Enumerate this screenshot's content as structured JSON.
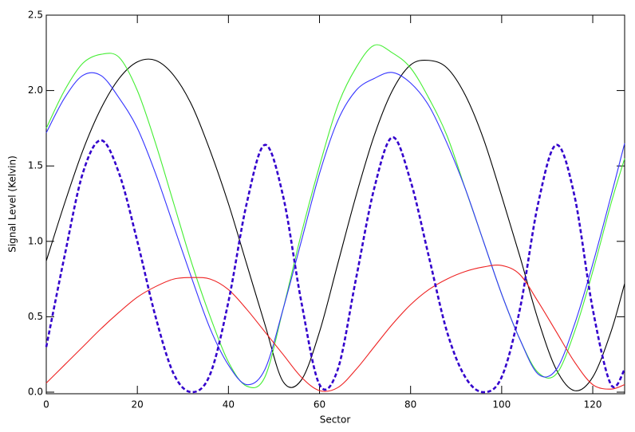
{
  "chart_data": {
    "type": "line",
    "xlabel": "Sector",
    "ylabel": "Signal Level (Kelvin)",
    "x": [
      0,
      4,
      8,
      12,
      16,
      20,
      24,
      28,
      32,
      36,
      40,
      44,
      48,
      52,
      56,
      60,
      64,
      68,
      72,
      76,
      80,
      84,
      88,
      92,
      96,
      100,
      104,
      108,
      112,
      116,
      120,
      124,
      127
    ],
    "series": [
      {
        "color": "#000000",
        "style": "solid",
        "values": [
          0.87,
          1.25,
          1.6,
          1.88,
          2.08,
          2.19,
          2.2,
          2.1,
          1.9,
          1.6,
          1.25,
          0.85,
          0.45,
          0.07,
          0.08,
          0.4,
          0.85,
          1.3,
          1.7,
          2.0,
          2.17,
          2.2,
          2.15,
          1.97,
          1.68,
          1.3,
          0.9,
          0.48,
          0.15,
          0.01,
          0.1,
          0.4,
          0.72
        ]
      },
      {
        "color": "#44ee33",
        "style": "solid",
        "values": [
          1.75,
          2.0,
          2.18,
          2.24,
          2.22,
          2.0,
          1.65,
          1.25,
          0.85,
          0.5,
          0.2,
          0.04,
          0.1,
          0.55,
          1.05,
          1.5,
          1.9,
          2.15,
          2.3,
          2.25,
          2.15,
          1.95,
          1.7,
          1.35,
          1.0,
          0.65,
          0.35,
          0.13,
          0.12,
          0.4,
          0.8,
          1.25,
          1.55
        ]
      },
      {
        "color": "#3333ff",
        "style": "solid",
        "values": [
          1.72,
          1.95,
          2.1,
          2.1,
          1.95,
          1.75,
          1.45,
          1.1,
          0.75,
          0.42,
          0.18,
          0.05,
          0.15,
          0.55,
          1.0,
          1.45,
          1.8,
          2.0,
          2.08,
          2.12,
          2.05,
          1.9,
          1.65,
          1.35,
          1.0,
          0.65,
          0.35,
          0.12,
          0.15,
          0.45,
          0.85,
          1.3,
          1.65
        ]
      },
      {
        "color": "#ee2222",
        "style": "solid",
        "values": [
          0.06,
          0.18,
          0.3,
          0.42,
          0.53,
          0.63,
          0.7,
          0.75,
          0.76,
          0.75,
          0.68,
          0.55,
          0.4,
          0.25,
          0.1,
          0.01,
          0.03,
          0.15,
          0.3,
          0.45,
          0.58,
          0.68,
          0.75,
          0.8,
          0.83,
          0.84,
          0.78,
          0.6,
          0.4,
          0.2,
          0.05,
          0.02,
          0.05
        ]
      },
      {
        "color": "#3300cc",
        "style": "dashed",
        "values": [
          0.3,
          0.9,
          1.45,
          1.67,
          1.45,
          1.0,
          0.5,
          0.12,
          0,
          0.12,
          0.6,
          1.25,
          1.64,
          1.3,
          0.6,
          0.05,
          0.15,
          0.75,
          1.35,
          1.69,
          1.4,
          0.9,
          0.4,
          0.1,
          0,
          0.1,
          0.55,
          1.25,
          1.64,
          1.3,
          0.55,
          0.05,
          0.15
        ]
      }
    ],
    "xlim": [
      0,
      127
    ],
    "ylim": [
      0,
      2.5
    ],
    "xticks": [
      0,
      20,
      40,
      60,
      80,
      100,
      120
    ],
    "yticks": [
      {
        "value": 0,
        "label": "0.0"
      },
      {
        "value": 0.5,
        "label": "0.5"
      },
      {
        "value": 1,
        "label": "1.0"
      },
      {
        "value": 1.5,
        "label": "1.5"
      },
      {
        "value": 2,
        "label": "2.0"
      },
      {
        "value": 2.5,
        "label": "2.5"
      }
    ],
    "grid": false
  }
}
